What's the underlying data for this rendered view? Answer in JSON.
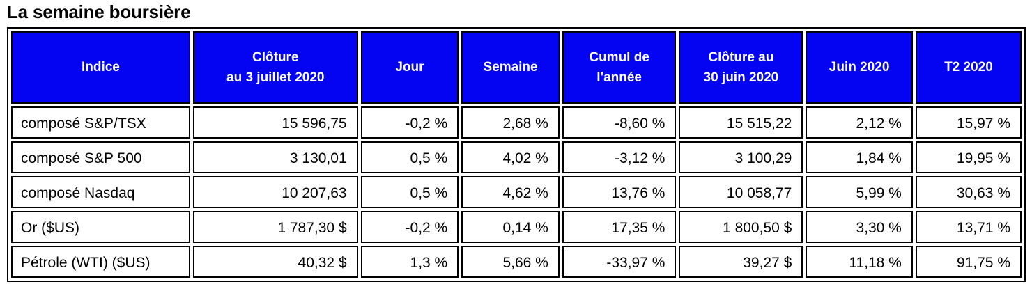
{
  "title": "La semaine boursière",
  "colors": {
    "header_bg": "#0404f2",
    "header_text": "#ffffff",
    "border": "#000000",
    "cell_bg": "#ffffff",
    "cell_text": "#000000"
  },
  "chart_data": {
    "type": "table",
    "title": "La semaine boursière",
    "columns": [
      "Indice",
      "Clôture\nau 3 juillet 2020",
      "Jour",
      "Semaine",
      "Cumul de\nl'année",
      "Clôture au\n30 juin 2020",
      "Juin 2020",
      "T2 2020"
    ],
    "rows": [
      {
        "cells": [
          "composé S&P/TSX",
          "15 596,75",
          "-0,2 %",
          "2,68 %",
          "-8,60 %",
          "15 515,22",
          "2,12 %",
          "15,97 %"
        ]
      },
      {
        "cells": [
          "composé S&P 500",
          "3 130,01",
          "0,5 %",
          "4,02 %",
          "-3,12 %",
          "3 100,29",
          "1,84 %",
          "19,95 %"
        ]
      },
      {
        "cells": [
          "composé Nasdaq",
          "10 207,63",
          "0,5 %",
          "4,62 %",
          "13,76 %",
          "10 058,77",
          "5,99 %",
          "30,63 %"
        ]
      },
      {
        "cells": [
          "Or ($US)",
          "1 787,30 $",
          "-0,2 %",
          "0,14 %",
          "17,35 %",
          "1 800,50 $",
          "3,30 %",
          "13,71 %"
        ]
      },
      {
        "cells": [
          "Pétrole (WTI) ($US)",
          "40,32 $",
          "1,3 %",
          "5,66 %",
          "-33,97 %",
          "39,27 $",
          "11,18 %",
          "91,75 %"
        ]
      }
    ]
  }
}
